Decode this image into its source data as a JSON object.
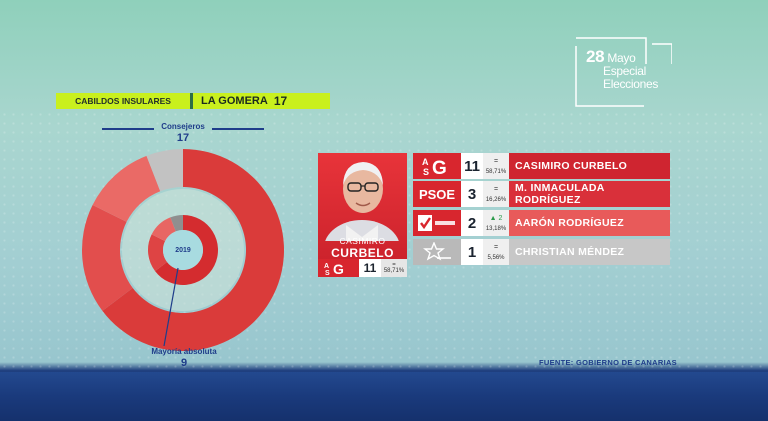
{
  "brand": {
    "date": "28",
    "line1": "Mayo",
    "line2": "Especial",
    "line3": "Elecciones"
  },
  "header": {
    "section": "CABILDOS INSULARES",
    "island": "LA GOMERA",
    "total": "17"
  },
  "chart": {
    "top_label": "Consejeros",
    "top_value": "17",
    "center_year": "2019",
    "bottom_label": "Mayoría absoluta",
    "bottom_value": "9"
  },
  "featured": {
    "first_name": "CASIMIRO",
    "last_name": "CURBELO",
    "party_logo": "ASG-logo",
    "seats": "11",
    "change": "=",
    "percent": "58,71%"
  },
  "results": [
    {
      "party": "ASG",
      "party_logo": "ASG-logo",
      "seats": "11",
      "change": "=",
      "percent": "58,71%",
      "candidate": "CASIMIRO CURBELO",
      "color": "#cf2530"
    },
    {
      "party": "PSOE",
      "party_logo": "PSOE-text",
      "seats": "3",
      "change": "=",
      "percent": "16,26%",
      "candidate": "M. INMACULADA RODRÍGUEZ",
      "color": "#d9303a"
    },
    {
      "party": "",
      "party_logo": "check-logo",
      "seats": "2",
      "change": "▲ 2",
      "percent": "13,18%",
      "candidate": "AARÓN RODRÍGUEZ",
      "color": "#e85a5a"
    },
    {
      "party": "",
      "party_logo": "star-logo",
      "seats": "1",
      "change": "=",
      "percent": "5,56%",
      "candidate": "CHRISTIAN MÉNDEZ",
      "color": "#c7c7c7"
    }
  ],
  "colors": {
    "accent": "#c9f01e",
    "asg": "#cf2530",
    "navy": "#1f3d8a"
  },
  "source": "FUENTE: GOBIERNO DE CANARIAS"
}
